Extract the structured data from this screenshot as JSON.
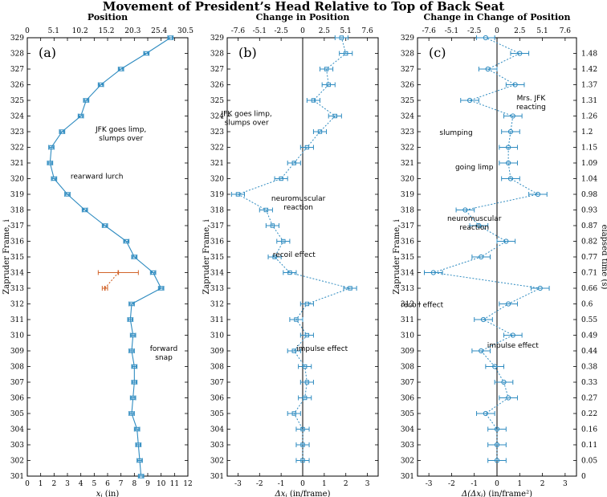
{
  "title": "Movement of President’s Head Relative to Top of Back Seat",
  "colors": {
    "series": "#2e8bc0",
    "second": "#d2642a",
    "frame": "#000000"
  },
  "frames": [
    301,
    302,
    303,
    304,
    305,
    306,
    307,
    308,
    309,
    310,
    311,
    312,
    313,
    314,
    315,
    316,
    317,
    318,
    319,
    320,
    321,
    322,
    323,
    324,
    325,
    326,
    327,
    328,
    329
  ],
  "shared_ylabel": "Zapruder Frame, i",
  "elapsed_label": "elapsed time (s)",
  "elapsed_ticks": [
    "0",
    "0.05",
    "0.11",
    "0.16",
    "0.22",
    "0.27",
    "0.33",
    "0.38",
    "0.44",
    "0.49",
    "0.55",
    "0.6",
    "0.66",
    "0.71",
    "0.77",
    "0.82",
    "0.87",
    "0.93",
    "0.98",
    "1.04",
    "1.09",
    "1.15",
    "1.2",
    "1.26",
    "1.31",
    "1.37",
    "1.42",
    "1.48"
  ],
  "chart_data": [
    {
      "type": "line",
      "tag": "(a)",
      "title": "Position",
      "xlabel": "x_i (in)",
      "xlim": [
        0,
        12
      ],
      "bottom_ticks": [
        "0",
        "1",
        "2",
        "3",
        "4",
        "5",
        "6",
        "7",
        "8",
        "9",
        "10",
        "11",
        "12"
      ],
      "top_ticks": [
        "0",
        "5.1",
        "10.2",
        "15.2",
        "20.3",
        "25.4",
        "30.5"
      ],
      "series": [
        {
          "name": "x",
          "marker": "square",
          "x": [
            8.5,
            8.4,
            8.3,
            8.2,
            7.8,
            7.9,
            8.0,
            8.0,
            7.8,
            7.9,
            7.7,
            7.8,
            10.0,
            9.4,
            8.0,
            7.4,
            5.8,
            4.3,
            3.0,
            2.0,
            1.7,
            1.8,
            2.6,
            4.0,
            4.4,
            5.5,
            7.0,
            8.9,
            10.7
          ],
          "err": [
            0.2,
            0.2,
            0.2,
            0.2,
            0.2,
            0.2,
            0.2,
            0.2,
            0.2,
            0.2,
            0.2,
            0.2,
            0.2,
            0.2,
            0.2,
            0.2,
            0.2,
            0.2,
            0.2,
            0.2,
            0.2,
            0.2,
            0.2,
            0.2,
            0.2,
            0.2,
            0.2,
            0.2,
            0.2
          ]
        },
        {
          "name": "second estimate",
          "marker": "tick",
          "frames": [
            313,
            314
          ],
          "x": [
            5.8,
            6.8
          ],
          "err": [
            0.2,
            1.5
          ]
        }
      ],
      "annotations": [
        {
          "text": [
            "JFK goes limp,",
            "slumps over"
          ],
          "frame": 323,
          "x": 7.0
        },
        {
          "text": [
            "rearward lurch"
          ],
          "frame": 320,
          "x": 5.2
        },
        {
          "text": [
            "forward",
            "snap"
          ],
          "frame": 309,
          "x": 10.2
        }
      ]
    },
    {
      "type": "scatter",
      "tag": "(b)",
      "title": "Change in Position",
      "xlabel": "Δx_i (in/frame)",
      "xlim": [
        -3.5,
        3.5
      ],
      "bottom_ticks": [
        "-3",
        "-2",
        "-1",
        "0",
        "1",
        "2",
        "3"
      ],
      "top_ticks": [
        "-7.6",
        "-5.1",
        "-2.5",
        "0",
        "2.5",
        "5.1",
        "7.6"
      ],
      "series": [
        {
          "name": "Δx",
          "marker": "square",
          "frames": [
            302,
            303,
            304,
            305,
            306,
            307,
            308,
            309,
            310,
            311,
            312,
            313,
            314,
            315,
            316,
            317,
            318,
            319,
            320,
            321,
            322,
            323,
            324,
            325,
            326,
            327,
            328,
            329
          ],
          "x": [
            0.0,
            0.0,
            0.0,
            -0.4,
            0.1,
            0.2,
            0.1,
            -0.4,
            0.2,
            -0.3,
            0.2,
            2.2,
            -0.6,
            -1.3,
            -0.9,
            -1.4,
            -1.7,
            -3.0,
            -1.0,
            -0.4,
            0.2,
            0.8,
            1.5,
            0.5,
            1.2,
            1.1,
            2.0,
            1.8
          ],
          "err": [
            0.3,
            0.3,
            0.3,
            0.3,
            0.3,
            0.3,
            0.3,
            0.3,
            0.3,
            0.3,
            0.3,
            0.3,
            0.3,
            0.3,
            0.3,
            0.3,
            0.3,
            0.3,
            0.3,
            0.3,
            0.3,
            0.3,
            0.3,
            0.3,
            0.3,
            0.3,
            0.3,
            0.3
          ]
        }
      ],
      "annotations": [
        {
          "text": [
            "JFK goes limp,",
            "slumps over"
          ],
          "frame": 324,
          "x": -2.6
        },
        {
          "text": [
            "neuromuscular",
            "reaction"
          ],
          "frame": 318.6,
          "x": -0.2
        },
        {
          "text": [
            "recoil effect"
          ],
          "frame": 315,
          "x": -0.4
        },
        {
          "text": [
            "impulse effect"
          ],
          "frame": 309,
          "x": 0.9
        }
      ]
    },
    {
      "type": "scatter",
      "tag": "(c)",
      "title": "Change in Change of Position",
      "xlabel": "Δ(Δx_i) (in/frame²)",
      "xlim": [
        -3.5,
        3.5
      ],
      "bottom_ticks": [
        "-3",
        "-2",
        "-1",
        "0",
        "1",
        "2",
        "3"
      ],
      "top_ticks": [
        "-7.6",
        "-5.1",
        "-2.5",
        "0",
        "2.5",
        "5.1",
        "7.6"
      ],
      "series": [
        {
          "name": "Δ(Δx)",
          "marker": "circle",
          "frames": [
            302,
            303,
            304,
            305,
            306,
            307,
            308,
            309,
            310,
            311,
            312,
            313,
            314,
            315,
            316,
            317,
            318,
            319,
            320,
            321,
            322,
            323,
            324,
            325,
            326,
            327,
            328,
            329
          ],
          "x": [
            0.0,
            0.0,
            0.0,
            -0.5,
            0.5,
            0.3,
            -0.1,
            -0.7,
            0.7,
            -0.6,
            0.5,
            1.9,
            -2.8,
            -0.7,
            0.4,
            -0.8,
            -1.4,
            1.8,
            0.6,
            0.5,
            0.5,
            0.6,
            0.7,
            -1.2,
            0.8,
            -0.4,
            1.0,
            -0.5
          ],
          "err": [
            0.4,
            0.4,
            0.4,
            0.4,
            0.4,
            0.4,
            0.4,
            0.4,
            0.4,
            0.4,
            0.4,
            0.4,
            0.4,
            0.4,
            0.4,
            0.4,
            0.4,
            0.4,
            0.4,
            0.4,
            0.4,
            0.4,
            0.4,
            0.4,
            0.4,
            0.4,
            0.4,
            0.4
          ]
        }
      ],
      "annotations": [
        {
          "text": [
            "Mrs. JFK",
            "reacting"
          ],
          "frame": 325,
          "x": 1.5
        },
        {
          "text": [
            "slumping"
          ],
          "frame": 322.8,
          "x": -1.8
        },
        {
          "text": [
            "going limp"
          ],
          "frame": 320.6,
          "x": -1.0
        },
        {
          "text": [
            "neuromuscular",
            "reaction"
          ],
          "frame": 317.3,
          "x": -1.0
        },
        {
          "text": [
            "recoil effect"
          ],
          "frame": 311.8,
          "x": -3.3
        },
        {
          "text": [
            "impulse effect"
          ],
          "frame": 309.2,
          "x": 0.7
        }
      ]
    }
  ]
}
